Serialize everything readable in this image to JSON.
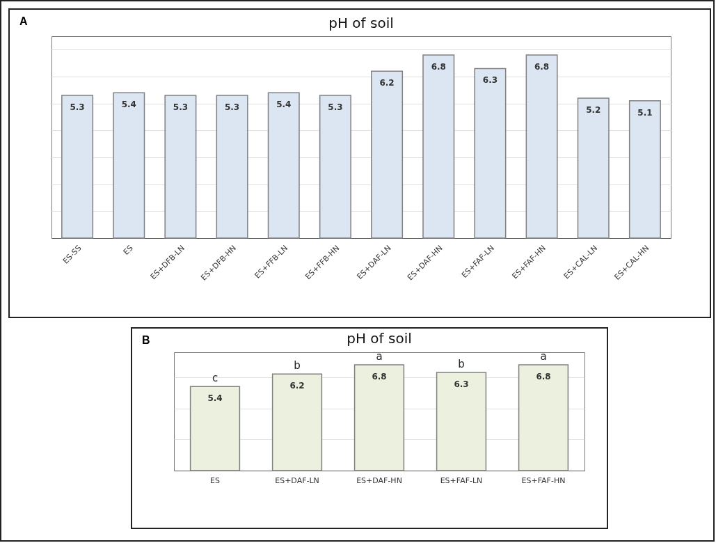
{
  "chart_data": [
    {
      "type": "bar",
      "title": "pH of soil",
      "annotations": [
        "A"
      ],
      "categories": [
        "ES-SS",
        "ES",
        "ES+DFB-LN",
        "ES+DFB-HN",
        "ES+FFB-LN",
        "ES+FFB-HN",
        "ES+DAF-LN",
        "ES+DAF-HN",
        "ES+FAF-LN",
        "ES+FAF-HN",
        "ES+CAL-LN",
        "ES+CAL-HN"
      ],
      "values": [
        5.3,
        5.4,
        5.3,
        5.3,
        5.4,
        5.3,
        6.2,
        6.8,
        6.3,
        6.8,
        5.2,
        5.1
      ],
      "color": "#dce6f2",
      "data_labels": true,
      "ylim": [
        0,
        7.5
      ],
      "yticks": [
        {
          "value": 0,
          "label": null
        },
        {
          "value": 1,
          "label": null
        },
        {
          "value": 2,
          "label": null
        },
        {
          "value": 3,
          "label": null
        },
        {
          "value": 4,
          "label": null
        },
        {
          "value": 5,
          "label": null
        },
        {
          "value": 6,
          "label": null
        },
        {
          "value": 7,
          "label": null
        }
      ],
      "tick_labels": "x",
      "grid": "y"
    },
    {
      "type": "bar",
      "title": "pH of soil",
      "categories": [
        "ES",
        "ES+DAF-LN",
        "ES+DAF-HN",
        "ES+FAF-LN",
        "ES+FAF-HN"
      ],
      "values": [
        5.4,
        6.2,
        6.8,
        6.3,
        6.8
      ],
      "color": "#ebf1de",
      "data_labels": true,
      "ylim": [
        0,
        7.6
      ],
      "yticks": [
        {
          "value": 0,
          "label": null
        },
        {
          "value": 2,
          "label": null
        },
        {
          "value": 4,
          "label": null
        },
        {
          "value": 6,
          "label": null
        }
      ],
      "tick_labels": "x",
      "grid": "y",
      "annotations": [
        "B",
        {
          "text": "c",
          "x": "ES",
          "y": 5.4
        },
        {
          "text": "b",
          "x": "ES+DAF-LN",
          "y": 6.2
        },
        {
          "text": "a",
          "x": "ES+DAF-HN",
          "y": 6.8
        },
        {
          "text": "b",
          "x": "ES+FAF-LN",
          "y": 6.3
        },
        {
          "text": "a",
          "x": "ES+FAF-HN",
          "y": 6.8
        }
      ]
    }
  ]
}
